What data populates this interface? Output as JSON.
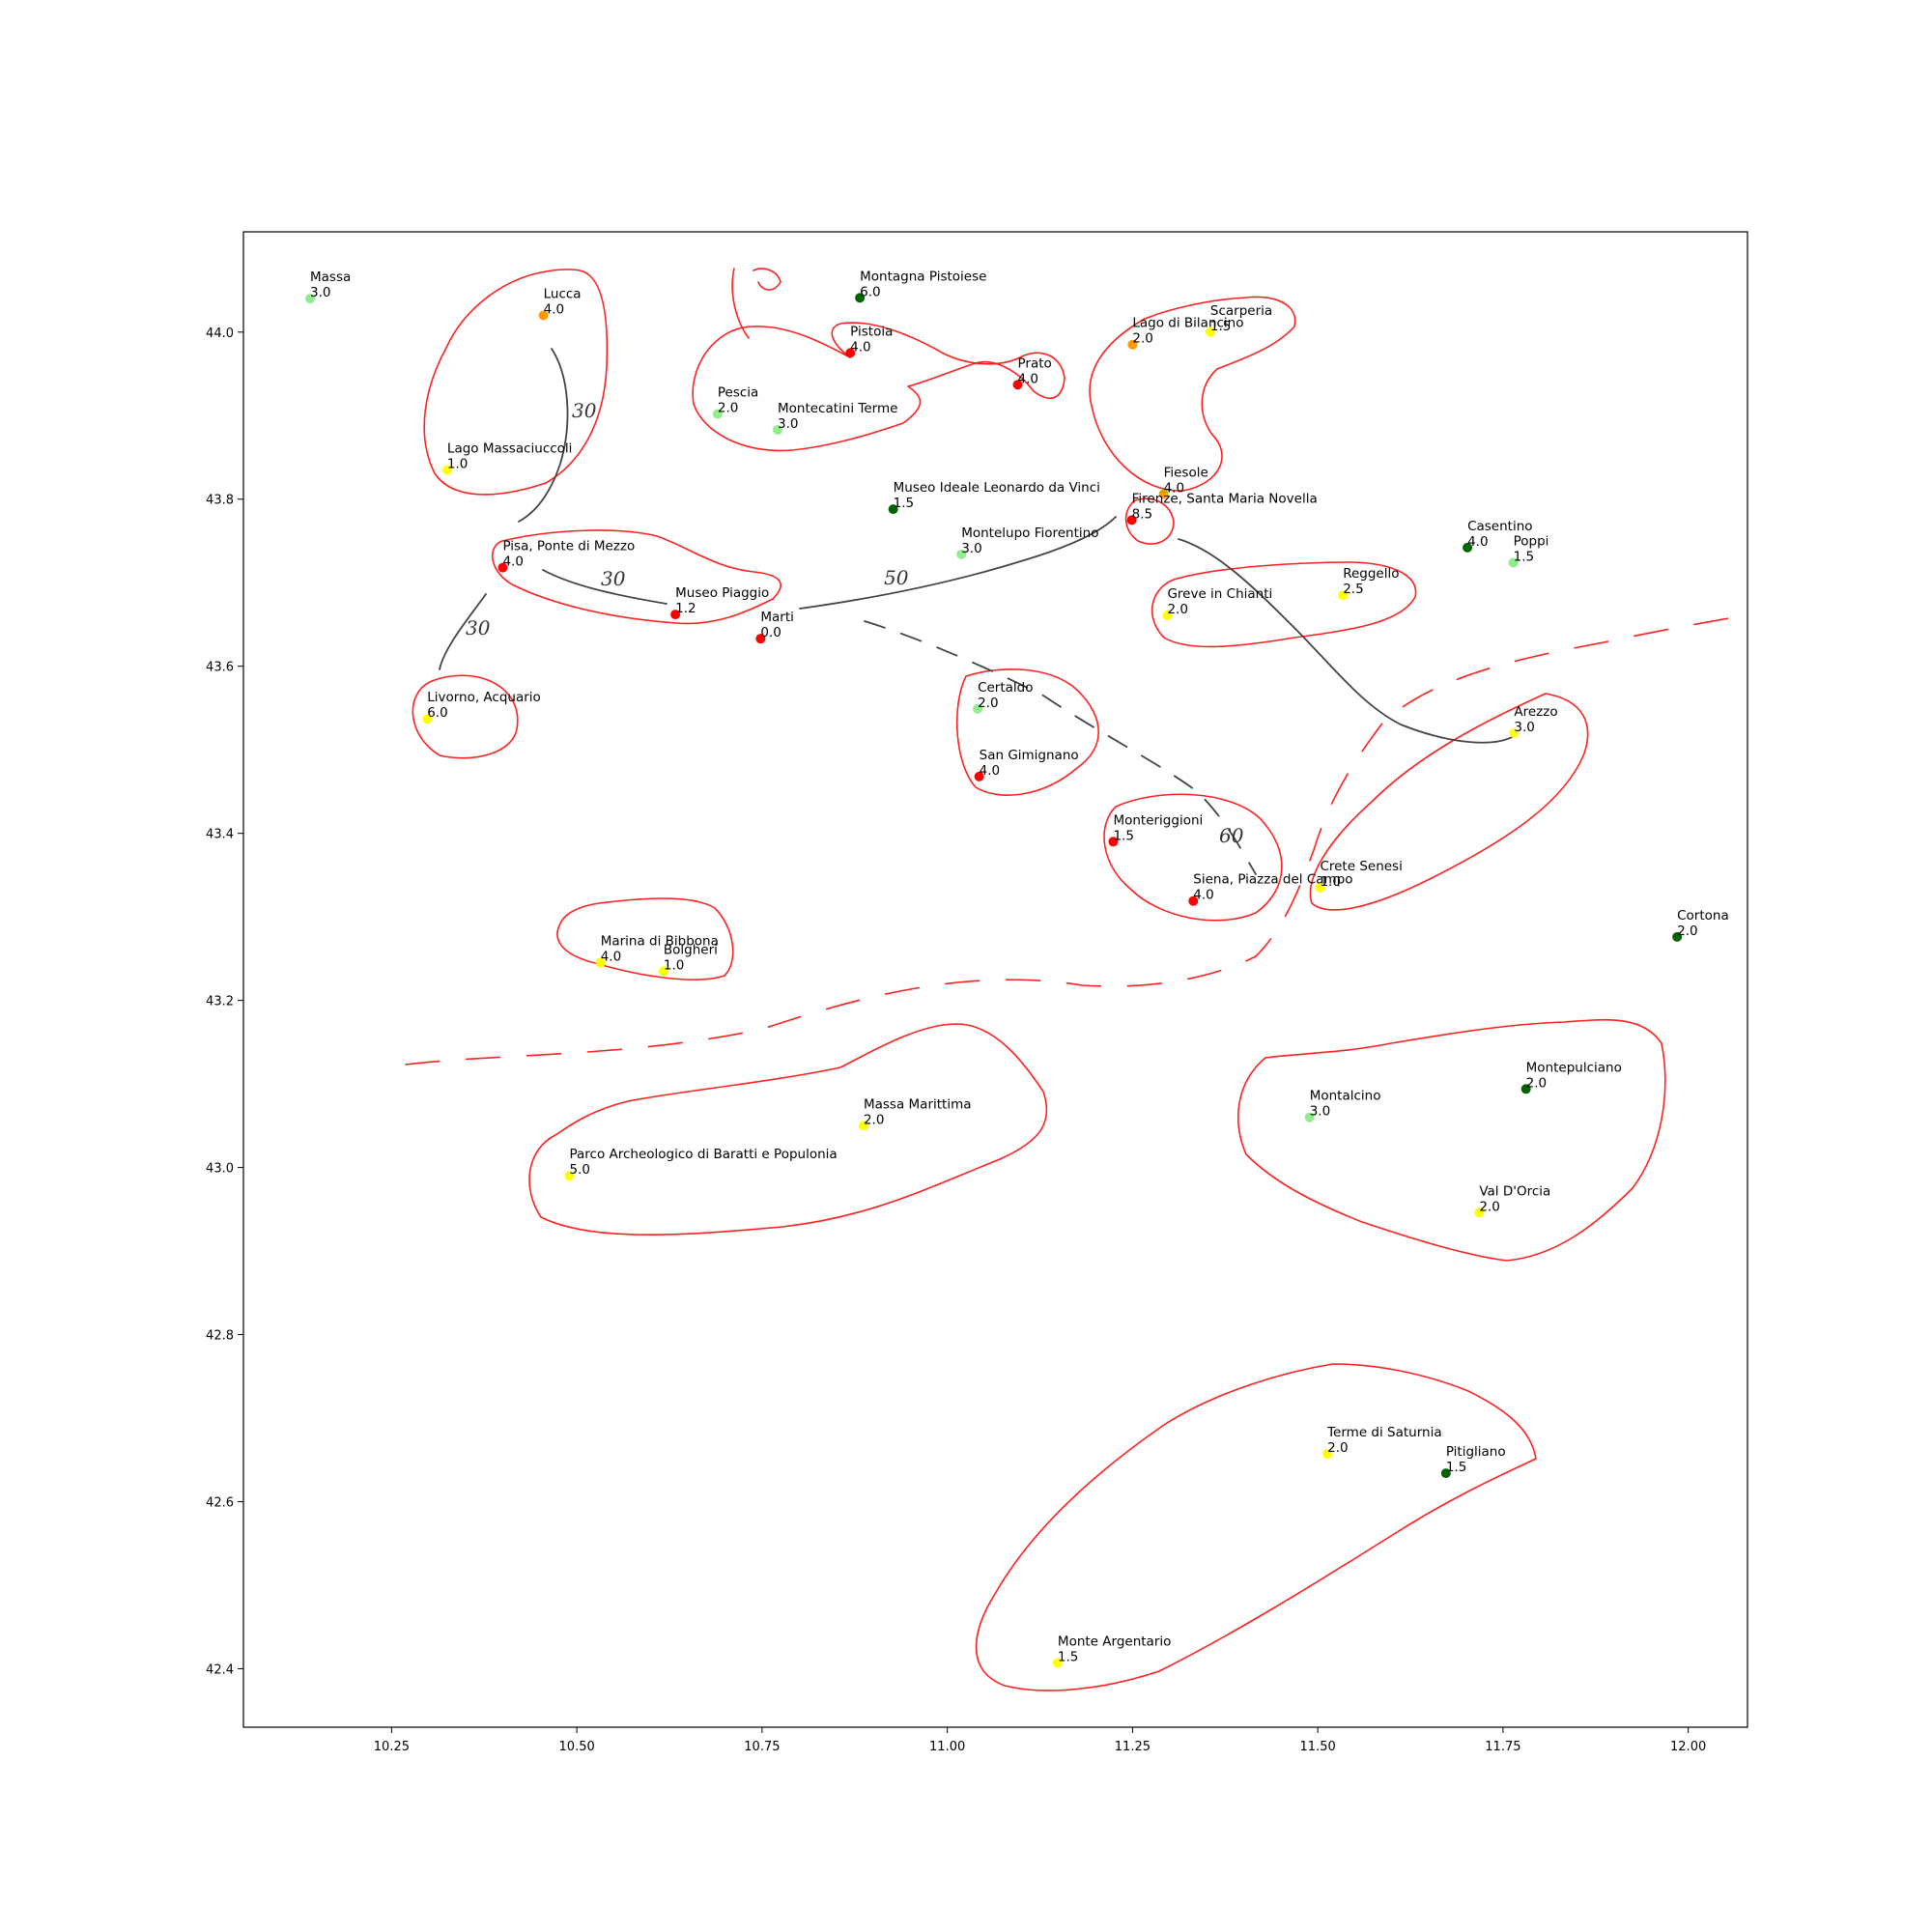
{
  "chart_data": {
    "type": "scatter",
    "title": "",
    "xlabel": "",
    "ylabel": "",
    "xlim": [
      10.05,
      12.08
    ],
    "ylim": [
      42.33,
      44.12
    ],
    "grid": false,
    "xticks": [
      10.25,
      10.5,
      10.75,
      11.0,
      11.25,
      11.5,
      11.75,
      12.0
    ],
    "xtick_labels": [
      "10.25",
      "10.50",
      "10.75",
      "11.00",
      "11.25",
      "11.50",
      "11.75",
      "12.00"
    ],
    "yticks": [
      42.4,
      42.6,
      42.8,
      43.0,
      43.2,
      43.4,
      43.6,
      43.8,
      44.0
    ],
    "ytick_labels": [
      "42.4",
      "42.6",
      "42.8",
      "43.0",
      "43.2",
      "43.4",
      "43.6",
      "43.8",
      "44.0"
    ],
    "colors": {
      "red": "#ff0000",
      "orange": "#ff9900",
      "yellow": "#ffff00",
      "lightgreen": "#90ee90",
      "darkgreen": "#006400"
    },
    "points": [
      {
        "name": "Massa",
        "value": "3.0",
        "x": 10.14,
        "y": 44.04,
        "color": "lightgreen"
      },
      {
        "name": "Lucca",
        "value": "4.0",
        "x": 10.455,
        "y": 44.02,
        "color": "orange"
      },
      {
        "name": "Lago Massaciuccoli",
        "value": "1.0",
        "x": 10.325,
        "y": 43.835,
        "color": "yellow"
      },
      {
        "name": "Pisa, Ponte di Mezzo",
        "value": "4.0",
        "x": 10.4,
        "y": 43.718,
        "color": "red"
      },
      {
        "name": "Museo Piaggio",
        "value": "1.2",
        "x": 10.633,
        "y": 43.662,
        "color": "red"
      },
      {
        "name": "Marti",
        "value": "0.0",
        "x": 10.748,
        "y": 43.633,
        "color": "red"
      },
      {
        "name": "Livorno, Acquario",
        "value": "6.0",
        "x": 10.298,
        "y": 43.537,
        "color": "yellow"
      },
      {
        "name": "Pescia",
        "value": "2.0",
        "x": 10.69,
        "y": 43.902,
        "color": "lightgreen"
      },
      {
        "name": "Montecatini Terme",
        "value": "3.0",
        "x": 10.771,
        "y": 43.883,
        "color": "lightgreen"
      },
      {
        "name": "Montagna Pistoiese",
        "value": "6.0",
        "x": 10.882,
        "y": 44.041,
        "color": "darkgreen"
      },
      {
        "name": "Pistoia",
        "value": "4.0",
        "x": 10.869,
        "y": 43.975,
        "color": "red"
      },
      {
        "name": "Prato",
        "value": "4.0",
        "x": 11.095,
        "y": 43.937,
        "color": "red"
      },
      {
        "name": "Museo Ideale Leonardo da Vinci",
        "value": "1.5",
        "x": 10.927,
        "y": 43.788,
        "color": "darkgreen"
      },
      {
        "name": "Montelupo Fiorentino",
        "value": "3.0",
        "x": 11.019,
        "y": 43.734,
        "color": "lightgreen"
      },
      {
        "name": "Lago di Bilancino",
        "value": "2.0",
        "x": 11.25,
        "y": 43.985,
        "color": "orange"
      },
      {
        "name": "Scarperia",
        "value": "1.5",
        "x": 11.355,
        "y": 44.0,
        "color": "yellow"
      },
      {
        "name": "Fiesole",
        "value": "4.0",
        "x": 11.292,
        "y": 43.806,
        "color": "orange"
      },
      {
        "name": "Firenze, Santa Maria Novella",
        "value": "8.5",
        "x": 11.249,
        "y": 43.775,
        "color": "red"
      },
      {
        "name": "Greve in Chianti",
        "value": "2.0",
        "x": 11.297,
        "y": 43.661,
        "color": "yellow"
      },
      {
        "name": "Reggello",
        "value": "2.5",
        "x": 11.534,
        "y": 43.685,
        "color": "yellow"
      },
      {
        "name": "Casentino",
        "value": "4.0",
        "x": 11.702,
        "y": 43.742,
        "color": "darkgreen"
      },
      {
        "name": "Poppi",
        "value": "1.5",
        "x": 11.764,
        "y": 43.724,
        "color": "lightgreen"
      },
      {
        "name": "Arezzo",
        "value": "3.0",
        "x": 11.765,
        "y": 43.52,
        "color": "yellow"
      },
      {
        "name": "Certaldo",
        "value": "2.0",
        "x": 11.041,
        "y": 43.549,
        "color": "lightgreen"
      },
      {
        "name": "San Gimignano",
        "value": "4.0",
        "x": 11.043,
        "y": 43.468,
        "color": "red"
      },
      {
        "name": "Monteriggioni",
        "value": "1.5",
        "x": 11.224,
        "y": 43.39,
        "color": "red"
      },
      {
        "name": "Siena, Piazza del Campo",
        "value": "4.0",
        "x": 11.332,
        "y": 43.319,
        "color": "red"
      },
      {
        "name": "Crete Senesi",
        "value": "1.0",
        "x": 11.503,
        "y": 43.335,
        "color": "yellow"
      },
      {
        "name": "Cortona",
        "value": "2.0",
        "x": 11.985,
        "y": 43.276,
        "color": "darkgreen"
      },
      {
        "name": "Marina di Bibbona",
        "value": "4.0",
        "x": 10.532,
        "y": 43.245,
        "color": "yellow"
      },
      {
        "name": "Bolgheri",
        "value": "1.0",
        "x": 10.617,
        "y": 43.235,
        "color": "yellow"
      },
      {
        "name": "Massa Marittima",
        "value": "2.0",
        "x": 10.887,
        "y": 43.05,
        "color": "yellow"
      },
      {
        "name": "Parco Archeologico di Baratti e Populonia",
        "value": "5.0",
        "x": 10.49,
        "y": 42.99,
        "color": "yellow"
      },
      {
        "name": "Montalcino",
        "value": "3.0",
        "x": 11.489,
        "y": 43.06,
        "color": "lightgreen"
      },
      {
        "name": "Montepulciano",
        "value": "2.0",
        "x": 11.781,
        "y": 43.094,
        "color": "darkgreen"
      },
      {
        "name": "Val D'Orcia",
        "value": "2.0",
        "x": 11.718,
        "y": 42.946,
        "color": "yellow"
      },
      {
        "name": "Terme di Saturnia",
        "value": "2.0",
        "x": 11.513,
        "y": 42.657,
        "color": "yellow"
      },
      {
        "name": "Pitigliano",
        "value": "1.5",
        "x": 11.673,
        "y": 42.634,
        "color": "darkgreen"
      },
      {
        "name": "Monte Argentario",
        "value": "1.5",
        "x": 11.149,
        "y": 42.407,
        "color": "yellow"
      }
    ],
    "annotations": [
      "30",
      "30",
      "30",
      "50",
      "60"
    ]
  }
}
